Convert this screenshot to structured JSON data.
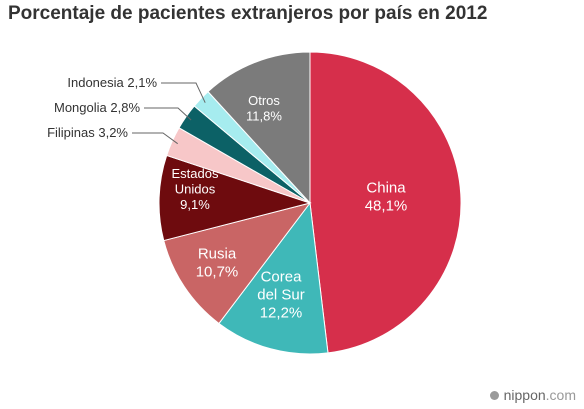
{
  "chart_data": {
    "type": "pie",
    "title": "Porcentaje de pacientes extranjeros por país en 2012",
    "slices": [
      {
        "label": [
          "China"
        ],
        "value_label": "48,1%",
        "value": 48.1,
        "color": "#d62f4b"
      },
      {
        "label": [
          "Corea",
          "del Sur"
        ],
        "value_label": "12,2%",
        "value": 12.2,
        "color": "#3fb8b8"
      },
      {
        "label": [
          "Rusia"
        ],
        "value_label": "10,7%",
        "value": 10.7,
        "color": "#c96565"
      },
      {
        "label": [
          "Estados",
          "Unidos"
        ],
        "value_label": "9,1%",
        "value": 9.1,
        "color": "#6e0b0e"
      },
      {
        "label": [
          "Filipinas"
        ],
        "value_label": "3,2%",
        "value": 3.2,
        "color": "#f7c7c8"
      },
      {
        "label": [
          "Mongolia"
        ],
        "value_label": "2,8%",
        "value": 2.8,
        "color": "#0c6166"
      },
      {
        "label": [
          "Indonesia"
        ],
        "value_label": "2,1%",
        "value": 2.1,
        "color": "#a6ecef"
      },
      {
        "label": [
          "Otros"
        ],
        "value_label": "11,8%",
        "value": 11.8,
        "color": "#7b7b7b"
      }
    ]
  },
  "credit": {
    "dot": "●",
    "brand": "nippon",
    "tld": ".com"
  }
}
